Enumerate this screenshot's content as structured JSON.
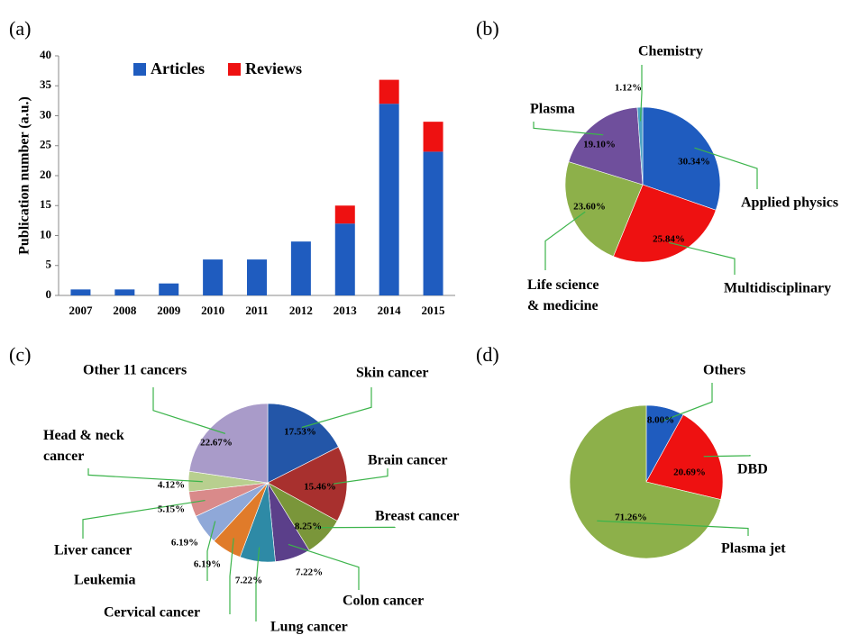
{
  "chart_data": [
    {
      "type": "bar",
      "label": "(a)",
      "stacked": true,
      "y_label": "Publication number (a.u.)",
      "categories": [
        "2007",
        "2008",
        "2009",
        "2010",
        "2011",
        "2012",
        "2013",
        "2014",
        "2015"
      ],
      "series": [
        {
          "name": "Articles",
          "color": "#1f5cbf",
          "values": [
            1,
            1,
            2,
            6,
            6,
            9,
            12,
            32,
            24
          ]
        },
        {
          "name": "Reviews",
          "color": "#ee1111",
          "values": [
            0,
            0,
            0,
            0,
            0,
            0,
            3,
            4,
            5
          ]
        }
      ],
      "ylim": [
        0,
        40
      ],
      "yticks": [
        0,
        5,
        10,
        15,
        20,
        25,
        30,
        35,
        40
      ]
    },
    {
      "type": "pie",
      "label": "(b)",
      "categories": [
        "Applied physics",
        "Multidisciplinary",
        "Life science\n& medicine",
        "Plasma",
        "Chemistry"
      ],
      "values": [
        30.34,
        25.84,
        23.6,
        19.1,
        1.12
      ],
      "value_labels": [
        "30.34%",
        "25.84%",
        "23.60%",
        "19.10%",
        "1.12%"
      ],
      "colors": [
        "#1f5cbf",
        "#ee1111",
        "#8db04a",
        "#6f4f9c",
        "#4aa3c4"
      ]
    },
    {
      "type": "pie",
      "label": "(c)",
      "categories": [
        "Skin cancer",
        "Brain cancer",
        "Breast cancer",
        "Colon cancer",
        "Lung cancer",
        "Cervical cancer",
        "Leukemia",
        "Liver cancer",
        "Head & neck\ncancer",
        "Other 11 cancers"
      ],
      "values": [
        17.53,
        15.46,
        8.25,
        7.22,
        7.22,
        6.19,
        6.19,
        5.15,
        4.12,
        22.67
      ],
      "value_labels": [
        "17.53%",
        "15.46%",
        "8.25%",
        "7.22%",
        "7.22%",
        "6.19%",
        "6.19%",
        "5.15%",
        "4.12%",
        "22.67%"
      ],
      "colors": [
        "#2356a8",
        "#a8302e",
        "#7a963a",
        "#5b3f8a",
        "#2e8aa6",
        "#e07b2a",
        "#8fa8d8",
        "#d98a8a",
        "#b8cf8f",
        "#a99bc9"
      ]
    },
    {
      "type": "pie",
      "label": "(d)",
      "categories": [
        "Others",
        "DBD",
        "Plasma jet"
      ],
      "values": [
        8.0,
        20.69,
        71.26
      ],
      "value_labels": [
        "8.00%",
        "20.69%",
        "71.26%"
      ],
      "colors": [
        "#1f5cbf",
        "#ee1111",
        "#8db04a"
      ]
    }
  ]
}
